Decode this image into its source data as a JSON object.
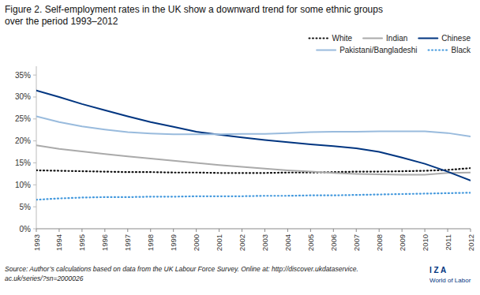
{
  "chart_data": {
    "type": "line",
    "title": "Figure 2. Self-employment rates in the UK show a downward trend for some ethnic groups\nover the period 1993–2012",
    "x": [
      1993,
      1994,
      1995,
      1996,
      1997,
      1998,
      1999,
      2000,
      2001,
      2002,
      2003,
      2004,
      2005,
      2006,
      2007,
      2008,
      2009,
      2010,
      2011,
      2012
    ],
    "series": [
      {
        "name": "White",
        "color": "#111111",
        "line_style": "dotted",
        "values": [
          0.133,
          0.132,
          0.131,
          0.13,
          0.129,
          0.129,
          0.128,
          0.128,
          0.127,
          0.127,
          0.127,
          0.128,
          0.128,
          0.129,
          0.13,
          0.13,
          0.131,
          0.132,
          0.134,
          0.138
        ]
      },
      {
        "name": "Indian",
        "color": "#aaaaaa",
        "line_style": "solid",
        "values": [
          0.19,
          0.182,
          0.176,
          0.17,
          0.165,
          0.16,
          0.155,
          0.15,
          0.145,
          0.141,
          0.137,
          0.133,
          0.13,
          0.127,
          0.125,
          0.124,
          0.123,
          0.123,
          0.127,
          0.128
        ]
      },
      {
        "name": "Chinese",
        "color": "#003580",
        "line_style": "solid",
        "values": [
          0.315,
          0.3,
          0.284,
          0.27,
          0.256,
          0.243,
          0.232,
          0.221,
          0.214,
          0.208,
          0.202,
          0.197,
          0.192,
          0.188,
          0.183,
          0.175,
          0.162,
          0.148,
          0.13,
          0.11
        ]
      },
      {
        "name": "Pakistani/Bangladeshi",
        "color": "#99bbdd",
        "line_style": "solid",
        "values": [
          0.256,
          0.243,
          0.233,
          0.226,
          0.22,
          0.217,
          0.215,
          0.215,
          0.215,
          0.216,
          0.216,
          0.218,
          0.22,
          0.221,
          0.221,
          0.222,
          0.222,
          0.222,
          0.218,
          0.21
        ]
      },
      {
        "name": "Black",
        "color": "#4499dd",
        "line_style": "dotted",
        "values": [
          0.066,
          0.069,
          0.071,
          0.072,
          0.072,
          0.073,
          0.073,
          0.074,
          0.074,
          0.074,
          0.075,
          0.075,
          0.076,
          0.076,
          0.077,
          0.078,
          0.079,
          0.08,
          0.081,
          0.082
        ]
      }
    ],
    "xlim": [
      1993,
      2012
    ],
    "xticks": [
      1993,
      1994,
      1995,
      1996,
      1997,
      1998,
      1999,
      2000,
      2001,
      2002,
      2003,
      2004,
      2005,
      2006,
      2007,
      2008,
      2009,
      2010,
      2011,
      2012
    ],
    "ylim": [
      0.0,
      0.37
    ],
    "yticks": [
      {
        "value": 0.0,
        "label": "0%"
      },
      {
        "value": 0.05,
        "label": "5%"
      },
      {
        "value": 0.1,
        "label": "10%"
      },
      {
        "value": 0.15,
        "label": "15%"
      },
      {
        "value": 0.2,
        "label": "20%"
      },
      {
        "value": 0.25,
        "label": "25%"
      },
      {
        "value": 0.3,
        "label": "30%"
      },
      {
        "value": 0.35,
        "label": "35%"
      }
    ],
    "grid": false,
    "legend": "upper right",
    "annotations": [
      "Source: Author’s calculations based on data from the UK Labour Force Survey. Online at: http://discover.ukdataservice.\nac.uk/series/?sn=2000026",
      "I Z A",
      "World of Labor"
    ]
  }
}
